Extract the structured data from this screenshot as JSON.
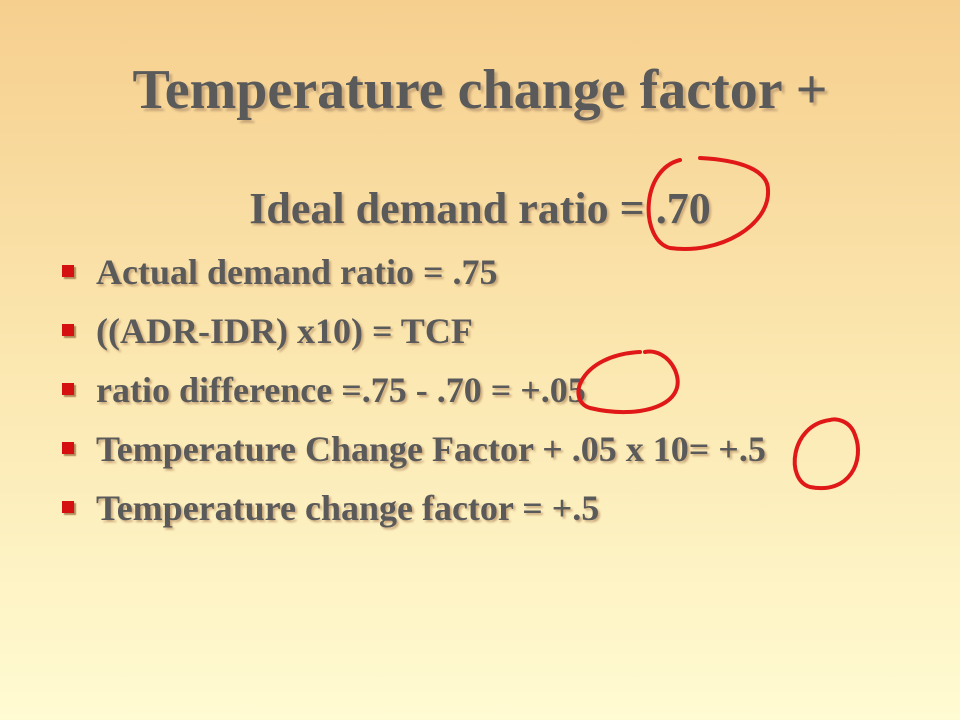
{
  "slide": {
    "title": "Temperature change factor  +",
    "subtitle": "Ideal demand ratio = .70",
    "bullets": [
      "Actual demand ratio =  .75",
      "((ADR-IDR) x10) = TCF",
      "ratio difference =.75 - .70 = +.05",
      "Temperature Change Factor + .05 x 10= +.5",
      "Temperature change factor =  +.5"
    ]
  }
}
